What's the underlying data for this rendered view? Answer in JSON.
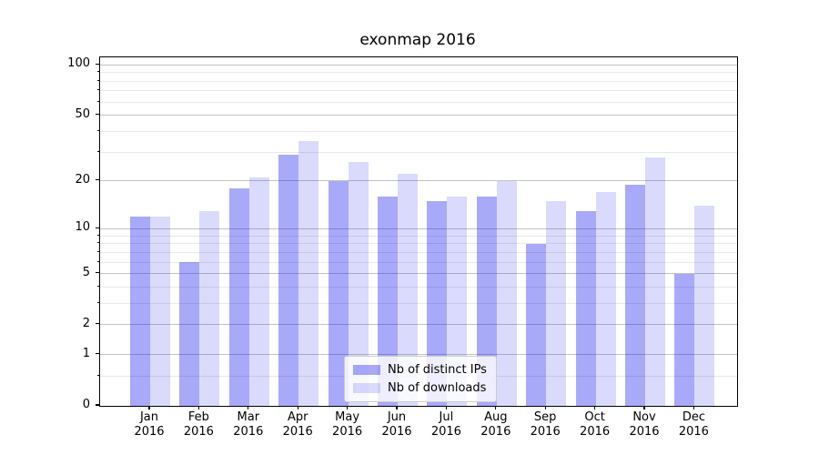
{
  "title": "exonmap 2016",
  "chart_data": {
    "type": "bar",
    "title": "exonmap 2016",
    "categories": [
      "Jan",
      "Feb",
      "Mar",
      "Apr",
      "May",
      "Jun",
      "Jul",
      "Aug",
      "Sep",
      "Oct",
      "Nov",
      "Dec"
    ],
    "year_label": "2016",
    "series": [
      {
        "name": "Nb of distinct IPs",
        "fill": "rgba(8,8,240,0.35)",
        "color_hex": "#a7a7fb",
        "values": [
          12,
          6,
          18,
          29,
          20,
          16,
          15,
          16,
          8,
          13,
          19,
          5
        ]
      },
      {
        "name": "Nb of downloads",
        "fill": "rgba(8,8,240,0.15)",
        "color_hex": "#d9d9fc",
        "values": [
          12,
          13,
          21,
          35,
          26,
          22,
          16,
          20,
          15,
          17,
          28,
          14
        ]
      }
    ],
    "yscale": "log1p",
    "ylim": [
      0,
      111
    ],
    "y_major_ticks": [
      0,
      1,
      2,
      5,
      10,
      20,
      50,
      100
    ],
    "y_minor_ticks": [
      0.5,
      3,
      4,
      6,
      7,
      8,
      9,
      30,
      40,
      60,
      70,
      80,
      90
    ],
    "grid": true,
    "legend_position": "lower center"
  },
  "legend": {
    "entries": [
      "Nb of distinct IPs",
      "Nb of downloads"
    ]
  },
  "colors": {
    "major_grid": "#c3c3c3",
    "minor_grid": "#e9e9e9",
    "spine": "#000000",
    "background": "#ffffff"
  }
}
